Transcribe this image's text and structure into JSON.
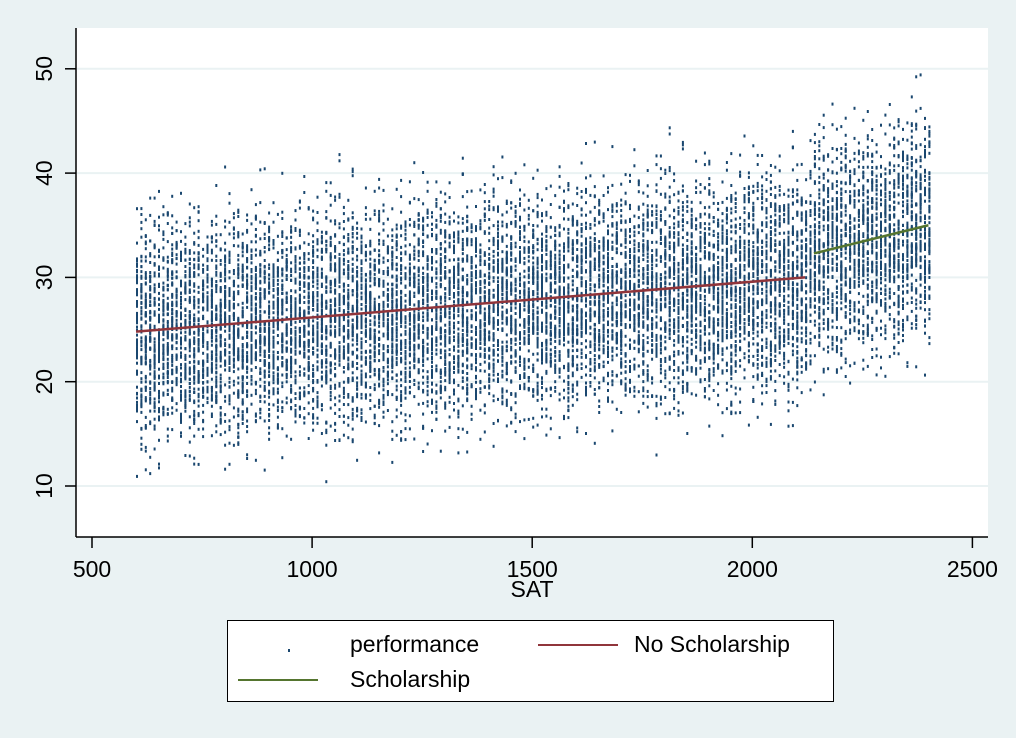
{
  "chart_data": {
    "type": "scatter",
    "title": "",
    "xlabel": "SAT",
    "ylabel": "",
    "xlim": [
      460,
      2540
    ],
    "ylim": [
      5,
      54
    ],
    "xticks": [
      500,
      1000,
      1500,
      2000,
      2500
    ],
    "yticks": [
      10,
      20,
      30,
      40,
      50
    ],
    "grid": "horizontal",
    "legend_position": "bottom",
    "series": [
      {
        "name": "performance",
        "kind": "scatter",
        "color": "#1a476f",
        "x_range": [
          600,
          2400
        ],
        "y_range_approx": [
          7,
          52.5
        ],
        "note": "dense scatter; center follows fit lines, spread about ±10"
      },
      {
        "name": "No Scholarship",
        "kind": "line",
        "color": "#90353b",
        "x": [
          600,
          2120
        ],
        "y": [
          24.8,
          30.0
        ]
      },
      {
        "name": "Scholarship",
        "kind": "line",
        "color": "#55752f",
        "x": [
          2140,
          2400
        ],
        "y": [
          32.3,
          35.0
        ]
      }
    ]
  },
  "legend": {
    "items": [
      {
        "label": "performance"
      },
      {
        "label": "No Scholarship"
      },
      {
        "label": "Scholarship"
      }
    ]
  },
  "axes": {
    "x_title": "SAT",
    "x_ticks": [
      "500",
      "1000",
      "1500",
      "2000",
      "2500"
    ],
    "y_ticks": [
      "10",
      "20",
      "30",
      "40",
      "50"
    ]
  }
}
